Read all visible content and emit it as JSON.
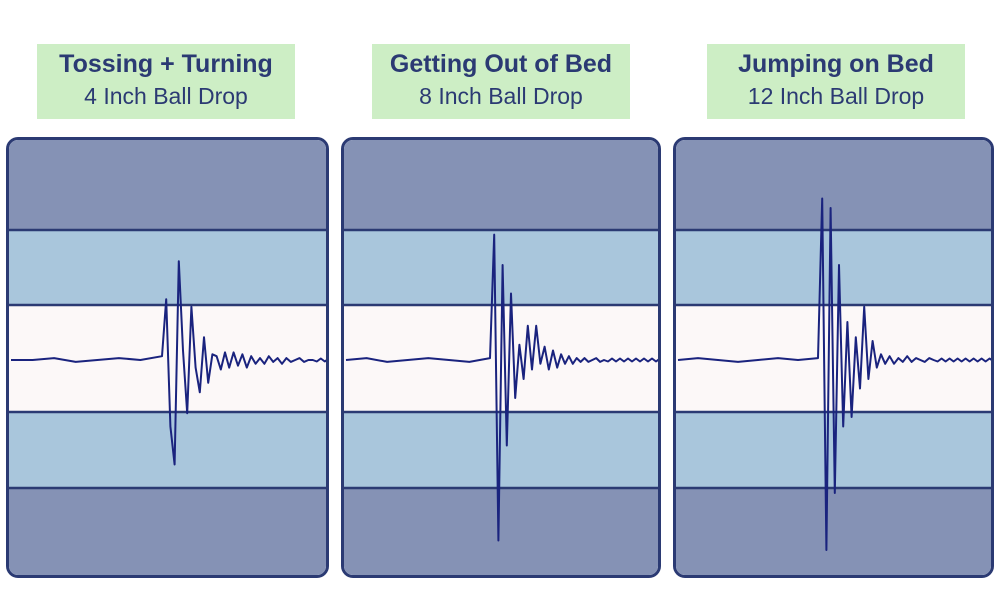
{
  "chart_data": [
    {
      "type": "line",
      "title": "Tossing + Turning",
      "subtitle": "4 Inch Ball Drop",
      "ylim": [
        -1,
        1
      ],
      "spike_index": 7,
      "series": [
        {
          "values": [
            0,
            0,
            0.01,
            -0.01,
            0,
            0.01,
            0,
            0.02,
            0.32,
            -0.35,
            -0.55,
            0.52,
            0.05,
            -0.28,
            0.28,
            -0.04,
            -0.17,
            0.12,
            -0.12,
            0.03,
            0.02,
            -0.05,
            0.04,
            -0.04,
            0.04,
            -0.03,
            0.03,
            -0.04,
            0.02,
            -0.02,
            0.01,
            -0.02,
            0.02,
            -0.01,
            0.01,
            -0.02,
            0.01,
            -0.01,
            0,
            0.01,
            -0.01,
            0,
            0
          ]
        }
      ],
      "colors": {
        "outer": "#8592b5",
        "middle": "#a9c6dc",
        "center": "#fcf8f8",
        "line": "#1a237e",
        "border": "#2b3a73"
      }
    },
    {
      "type": "line",
      "title": "Getting Out of Bed",
      "subtitle": "8 Inch Ball Drop",
      "ylim": [
        -1,
        1
      ],
      "spike_index": 7,
      "series": [
        {
          "values": [
            0,
            0.01,
            -0.01,
            0,
            0.01,
            0,
            -0.01,
            0.01,
            0.66,
            -0.95,
            0.5,
            -0.45,
            0.35,
            -0.2,
            0.08,
            -0.1,
            0.18,
            -0.05,
            0.18,
            -0.02,
            0.07,
            -0.05,
            0.05,
            -0.04,
            0.03,
            -0.02,
            0.02,
            -0.02,
            0.01,
            -0.01,
            0.01,
            -0.01,
            0,
            0.01,
            -0.01,
            0
          ]
        }
      ],
      "colors": {
        "outer": "#8592b5",
        "middle": "#a9c6dc",
        "center": "#fcf8f8",
        "line": "#1a237e",
        "border": "#2b3a73"
      }
    },
    {
      "type": "line",
      "title": "Jumping on Bed",
      "subtitle": "12 Inch Ball Drop",
      "ylim": [
        -1,
        1
      ],
      "spike_index": 7,
      "series": [
        {
          "values": [
            0,
            0.01,
            0,
            -0.01,
            0,
            0.01,
            0,
            0.01,
            0.85,
            -1,
            0.8,
            -0.7,
            0.5,
            -0.35,
            0.2,
            -0.3,
            0.12,
            -0.15,
            0.28,
            -0.1,
            0.1,
            -0.04,
            0.03,
            -0.02,
            0.02,
            -0.02,
            0.01,
            -0.01,
            0.02,
            -0.01,
            0.01,
            0,
            -0.01,
            0.01,
            0
          ]
        }
      ],
      "colors": {
        "outer": "#8592b5",
        "middle": "#a9c6dc",
        "center": "#fcf8f8",
        "line": "#1a237e",
        "border": "#2b3a73"
      }
    }
  ]
}
